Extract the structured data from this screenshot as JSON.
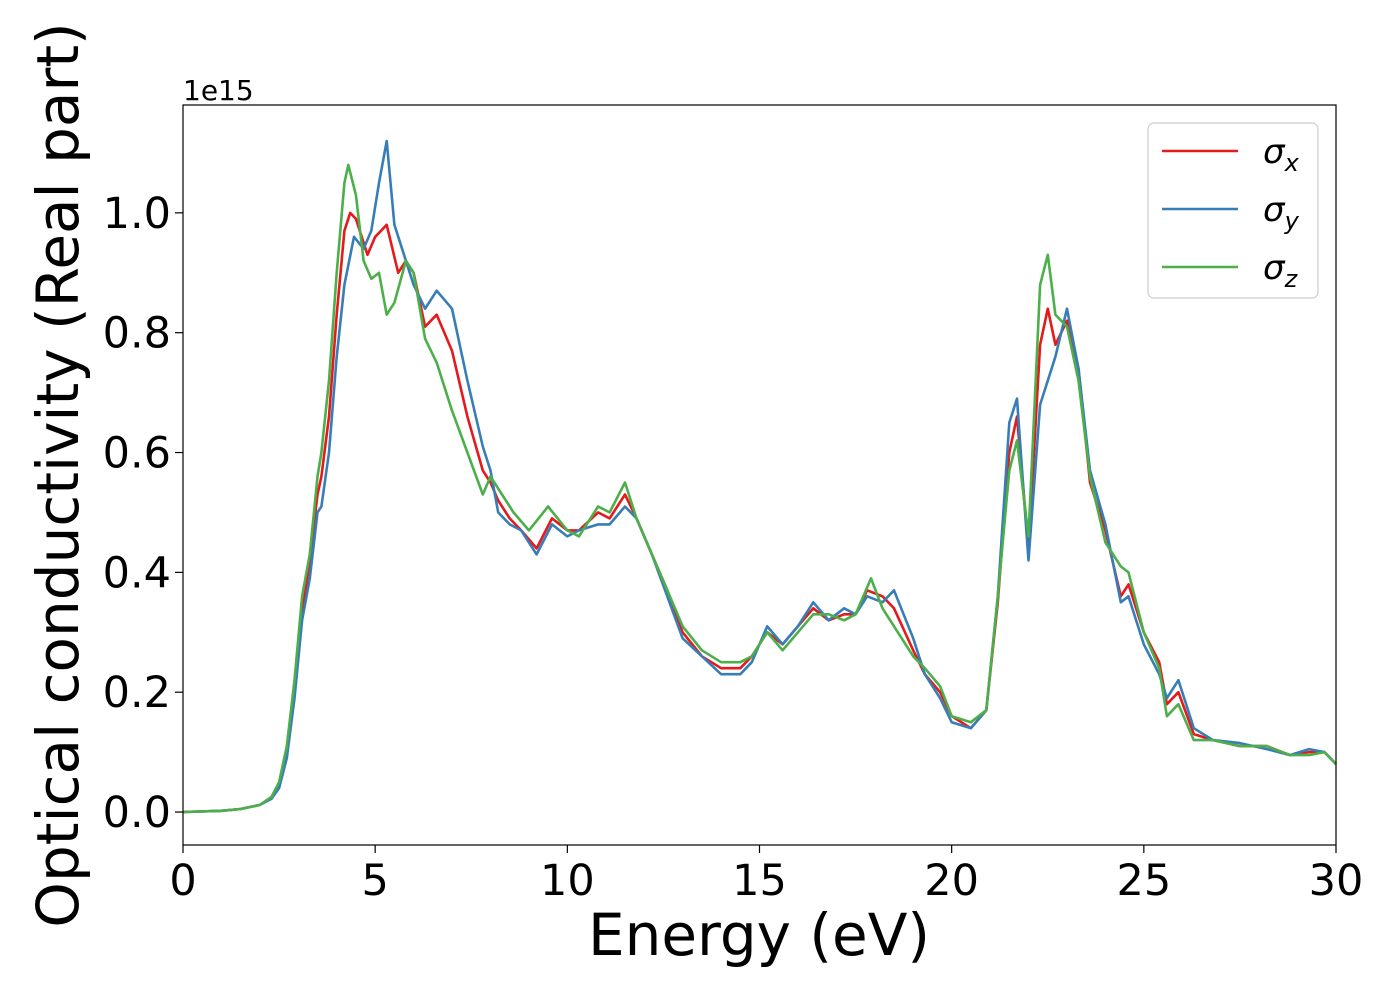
{
  "chart_data": {
    "type": "line",
    "title": "",
    "xlabel": "Energy (eV)",
    "ylabel": "Optical conductivity (Real part)",
    "offset_label": "1e15",
    "xlim": [
      0,
      30
    ],
    "ylim": [
      -0.055,
      1.18
    ],
    "xticks": [
      0,
      5,
      10,
      15,
      20,
      25,
      30
    ],
    "xtick_labels": [
      "0",
      "5",
      "10",
      "15",
      "20",
      "25",
      "30"
    ],
    "yticks": [
      0.0,
      0.2,
      0.4,
      0.6,
      0.8,
      1.0
    ],
    "ytick_labels": [
      "0.0",
      "0.2",
      "0.4",
      "0.6",
      "0.8",
      "1.0"
    ],
    "grid": false,
    "legend_position": "top-right",
    "series": [
      {
        "name": "σx",
        "name_base": "σ",
        "name_sub": "x",
        "color": "#e41a1c",
        "points": [
          [
            0,
            0
          ],
          [
            1,
            0.002
          ],
          [
            1.5,
            0.005
          ],
          [
            2,
            0.012
          ],
          [
            2.3,
            0.025
          ],
          [
            2.5,
            0.045
          ],
          [
            2.7,
            0.1
          ],
          [
            2.9,
            0.2
          ],
          [
            3.1,
            0.33
          ],
          [
            3.3,
            0.42
          ],
          [
            3.5,
            0.53
          ],
          [
            3.6,
            0.56
          ],
          [
            3.8,
            0.66
          ],
          [
            4.0,
            0.83
          ],
          [
            4.2,
            0.97
          ],
          [
            4.35,
            1.0
          ],
          [
            4.5,
            0.99
          ],
          [
            4.8,
            0.93
          ],
          [
            5.0,
            0.96
          ],
          [
            5.3,
            0.98
          ],
          [
            5.6,
            0.9
          ],
          [
            5.8,
            0.92
          ],
          [
            6.0,
            0.9
          ],
          [
            6.3,
            0.81
          ],
          [
            6.6,
            0.83
          ],
          [
            7.0,
            0.77
          ],
          [
            7.4,
            0.66
          ],
          [
            7.8,
            0.57
          ],
          [
            8.0,
            0.55
          ],
          [
            8.2,
            0.52
          ],
          [
            8.5,
            0.49
          ],
          [
            8.8,
            0.47
          ],
          [
            9.2,
            0.44
          ],
          [
            9.6,
            0.49
          ],
          [
            10.0,
            0.47
          ],
          [
            10.3,
            0.47
          ],
          [
            10.8,
            0.5
          ],
          [
            11.1,
            0.49
          ],
          [
            11.5,
            0.53
          ],
          [
            11.8,
            0.49
          ],
          [
            12.2,
            0.43
          ],
          [
            12.6,
            0.37
          ],
          [
            13.0,
            0.3
          ],
          [
            13.5,
            0.26
          ],
          [
            14.0,
            0.24
          ],
          [
            14.5,
            0.24
          ],
          [
            14.8,
            0.26
          ],
          [
            15.2,
            0.3
          ],
          [
            15.6,
            0.28
          ],
          [
            16.0,
            0.31
          ],
          [
            16.4,
            0.34
          ],
          [
            16.8,
            0.32
          ],
          [
            17.2,
            0.33
          ],
          [
            17.5,
            0.33
          ],
          [
            17.8,
            0.37
          ],
          [
            18.2,
            0.36
          ],
          [
            18.5,
            0.34
          ],
          [
            19.0,
            0.27
          ],
          [
            19.3,
            0.23
          ],
          [
            19.7,
            0.2
          ],
          [
            20.0,
            0.16
          ],
          [
            20.5,
            0.14
          ],
          [
            20.9,
            0.17
          ],
          [
            21.2,
            0.35
          ],
          [
            21.5,
            0.6
          ],
          [
            21.7,
            0.66
          ],
          [
            22.0,
            0.44
          ],
          [
            22.3,
            0.78
          ],
          [
            22.5,
            0.84
          ],
          [
            22.7,
            0.78
          ],
          [
            23.0,
            0.82
          ],
          [
            23.3,
            0.74
          ],
          [
            23.6,
            0.55
          ],
          [
            24.0,
            0.47
          ],
          [
            24.4,
            0.36
          ],
          [
            24.6,
            0.38
          ],
          [
            25.0,
            0.3
          ],
          [
            25.4,
            0.25
          ],
          [
            25.6,
            0.18
          ],
          [
            25.9,
            0.2
          ],
          [
            26.3,
            0.13
          ],
          [
            26.8,
            0.12
          ],
          [
            27.5,
            0.11
          ],
          [
            28.2,
            0.11
          ],
          [
            28.8,
            0.095
          ],
          [
            29.3,
            0.1
          ],
          [
            29.7,
            0.1
          ],
          [
            30,
            0.08
          ]
        ]
      },
      {
        "name": "σy",
        "name_base": "σ",
        "name_sub": "y",
        "color": "#377eb8",
        "points": [
          [
            0,
            0
          ],
          [
            1,
            0.002
          ],
          [
            1.5,
            0.005
          ],
          [
            2,
            0.012
          ],
          [
            2.3,
            0.022
          ],
          [
            2.5,
            0.04
          ],
          [
            2.7,
            0.09
          ],
          [
            2.9,
            0.19
          ],
          [
            3.1,
            0.32
          ],
          [
            3.3,
            0.39
          ],
          [
            3.5,
            0.5
          ],
          [
            3.6,
            0.51
          ],
          [
            3.8,
            0.6
          ],
          [
            4.0,
            0.76
          ],
          [
            4.2,
            0.88
          ],
          [
            4.45,
            0.96
          ],
          [
            4.7,
            0.94
          ],
          [
            4.9,
            0.97
          ],
          [
            5.1,
            1.05
          ],
          [
            5.3,
            1.12
          ],
          [
            5.5,
            0.98
          ],
          [
            5.7,
            0.94
          ],
          [
            6.0,
            0.88
          ],
          [
            6.3,
            0.84
          ],
          [
            6.6,
            0.87
          ],
          [
            7.0,
            0.84
          ],
          [
            7.4,
            0.72
          ],
          [
            7.8,
            0.61
          ],
          [
            8.0,
            0.57
          ],
          [
            8.2,
            0.5
          ],
          [
            8.5,
            0.48
          ],
          [
            8.8,
            0.47
          ],
          [
            9.2,
            0.43
          ],
          [
            9.6,
            0.48
          ],
          [
            10.0,
            0.46
          ],
          [
            10.3,
            0.47
          ],
          [
            10.8,
            0.48
          ],
          [
            11.1,
            0.48
          ],
          [
            11.5,
            0.51
          ],
          [
            11.8,
            0.49
          ],
          [
            12.2,
            0.43
          ],
          [
            12.6,
            0.36
          ],
          [
            13.0,
            0.29
          ],
          [
            13.5,
            0.26
          ],
          [
            14.0,
            0.23
          ],
          [
            14.5,
            0.23
          ],
          [
            14.8,
            0.25
          ],
          [
            15.2,
            0.31
          ],
          [
            15.6,
            0.28
          ],
          [
            16.0,
            0.31
          ],
          [
            16.4,
            0.35
          ],
          [
            16.8,
            0.32
          ],
          [
            17.2,
            0.34
          ],
          [
            17.5,
            0.33
          ],
          [
            17.8,
            0.36
          ],
          [
            18.2,
            0.35
          ],
          [
            18.5,
            0.37
          ],
          [
            19.0,
            0.29
          ],
          [
            19.3,
            0.23
          ],
          [
            19.7,
            0.19
          ],
          [
            20.0,
            0.15
          ],
          [
            20.5,
            0.14
          ],
          [
            20.9,
            0.17
          ],
          [
            21.2,
            0.36
          ],
          [
            21.5,
            0.65
          ],
          [
            21.7,
            0.69
          ],
          [
            22.0,
            0.42
          ],
          [
            22.3,
            0.68
          ],
          [
            22.5,
            0.72
          ],
          [
            22.7,
            0.76
          ],
          [
            23.0,
            0.84
          ],
          [
            23.3,
            0.74
          ],
          [
            23.6,
            0.57
          ],
          [
            24.0,
            0.48
          ],
          [
            24.4,
            0.35
          ],
          [
            24.6,
            0.36
          ],
          [
            25.0,
            0.28
          ],
          [
            25.4,
            0.23
          ],
          [
            25.6,
            0.19
          ],
          [
            25.9,
            0.22
          ],
          [
            26.3,
            0.14
          ],
          [
            26.8,
            0.12
          ],
          [
            27.5,
            0.115
          ],
          [
            28.2,
            0.105
          ],
          [
            28.8,
            0.095
          ],
          [
            29.3,
            0.105
          ],
          [
            29.7,
            0.1
          ],
          [
            30,
            0.08
          ]
        ]
      },
      {
        "name": "σz",
        "name_base": "σ",
        "name_sub": "z",
        "color": "#4daf4a",
        "points": [
          [
            0,
            0
          ],
          [
            1,
            0.002
          ],
          [
            1.5,
            0.005
          ],
          [
            2,
            0.012
          ],
          [
            2.3,
            0.025
          ],
          [
            2.5,
            0.05
          ],
          [
            2.7,
            0.11
          ],
          [
            2.9,
            0.22
          ],
          [
            3.1,
            0.36
          ],
          [
            3.3,
            0.43
          ],
          [
            3.5,
            0.56
          ],
          [
            3.6,
            0.6
          ],
          [
            3.8,
            0.72
          ],
          [
            4.0,
            0.9
          ],
          [
            4.2,
            1.05
          ],
          [
            4.3,
            1.08
          ],
          [
            4.5,
            1.03
          ],
          [
            4.7,
            0.92
          ],
          [
            4.9,
            0.89
          ],
          [
            5.1,
            0.9
          ],
          [
            5.3,
            0.83
          ],
          [
            5.5,
            0.85
          ],
          [
            5.8,
            0.92
          ],
          [
            6.0,
            0.9
          ],
          [
            6.3,
            0.79
          ],
          [
            6.6,
            0.75
          ],
          [
            7.0,
            0.67
          ],
          [
            7.4,
            0.6
          ],
          [
            7.8,
            0.53
          ],
          [
            8.0,
            0.56
          ],
          [
            8.3,
            0.53
          ],
          [
            8.6,
            0.5
          ],
          [
            9.0,
            0.47
          ],
          [
            9.5,
            0.51
          ],
          [
            10.0,
            0.47
          ],
          [
            10.3,
            0.46
          ],
          [
            10.8,
            0.51
          ],
          [
            11.1,
            0.5
          ],
          [
            11.5,
            0.55
          ],
          [
            11.8,
            0.49
          ],
          [
            12.2,
            0.43
          ],
          [
            12.6,
            0.37
          ],
          [
            13.0,
            0.31
          ],
          [
            13.5,
            0.27
          ],
          [
            14.0,
            0.25
          ],
          [
            14.5,
            0.25
          ],
          [
            14.8,
            0.26
          ],
          [
            15.2,
            0.3
          ],
          [
            15.6,
            0.27
          ],
          [
            16.0,
            0.3
          ],
          [
            16.4,
            0.33
          ],
          [
            16.8,
            0.33
          ],
          [
            17.2,
            0.32
          ],
          [
            17.5,
            0.33
          ],
          [
            17.9,
            0.39
          ],
          [
            18.2,
            0.34
          ],
          [
            18.5,
            0.31
          ],
          [
            19.0,
            0.26
          ],
          [
            19.3,
            0.24
          ],
          [
            19.7,
            0.21
          ],
          [
            20.0,
            0.16
          ],
          [
            20.5,
            0.15
          ],
          [
            20.9,
            0.17
          ],
          [
            21.2,
            0.36
          ],
          [
            21.5,
            0.57
          ],
          [
            21.7,
            0.62
          ],
          [
            22.0,
            0.46
          ],
          [
            22.3,
            0.88
          ],
          [
            22.5,
            0.93
          ],
          [
            22.7,
            0.83
          ],
          [
            23.0,
            0.81
          ],
          [
            23.3,
            0.72
          ],
          [
            23.6,
            0.56
          ],
          [
            24.0,
            0.45
          ],
          [
            24.4,
            0.41
          ],
          [
            24.6,
            0.4
          ],
          [
            25.0,
            0.3
          ],
          [
            25.4,
            0.24
          ],
          [
            25.6,
            0.16
          ],
          [
            25.9,
            0.18
          ],
          [
            26.3,
            0.12
          ],
          [
            26.8,
            0.12
          ],
          [
            27.5,
            0.11
          ],
          [
            28.2,
            0.11
          ],
          [
            28.8,
            0.095
          ],
          [
            29.3,
            0.095
          ],
          [
            29.7,
            0.1
          ],
          [
            30,
            0.08
          ]
        ]
      }
    ]
  }
}
